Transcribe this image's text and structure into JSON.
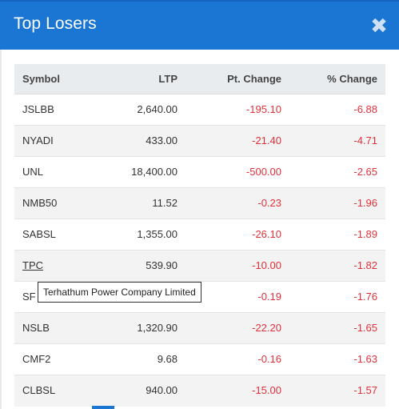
{
  "dialog": {
    "title": "Top Losers",
    "close_glyph": "✖"
  },
  "table": {
    "headers": {
      "symbol": "Symbol",
      "ltp": "LTP",
      "pt_change": "Pt. Change",
      "pct_change": "% Change"
    },
    "rows": [
      {
        "symbol": "JSLBB",
        "ltp": "2,640.00",
        "pt_change": "-195.10",
        "pct_change": "-6.88"
      },
      {
        "symbol": "NYADI",
        "ltp": "433.00",
        "pt_change": "-21.40",
        "pct_change": "-4.71"
      },
      {
        "symbol": "UNL",
        "ltp": "18,400.00",
        "pt_change": "-500.00",
        "pct_change": "-2.65"
      },
      {
        "symbol": "NMB50",
        "ltp": "11.52",
        "pt_change": "-0.23",
        "pct_change": "-1.96"
      },
      {
        "symbol": "SABSL",
        "ltp": "1,355.00",
        "pt_change": "-26.10",
        "pct_change": "-1.89"
      },
      {
        "symbol": "TPC",
        "ltp": "539.90",
        "pt_change": "-10.00",
        "pct_change": "-1.82"
      },
      {
        "symbol": "SF",
        "ltp": "",
        "pt_change": "-0.19",
        "pct_change": "-1.76"
      },
      {
        "symbol": "NSLB",
        "ltp": "1,320.90",
        "pt_change": "-22.20",
        "pct_change": "-1.65"
      },
      {
        "symbol": "CMF2",
        "ltp": "9.68",
        "pt_change": "-0.16",
        "pct_change": "-1.63"
      },
      {
        "symbol": "CLBSL",
        "ltp": "940.00",
        "pt_change": "-15.00",
        "pct_change": "-1.57"
      }
    ]
  },
  "tooltip": {
    "text": "Terhathum Power Company Limited"
  },
  "colors": {
    "header_bg": "#1a76d2",
    "negative": "#e0313a",
    "table_head_bg": "#e9ecef"
  }
}
